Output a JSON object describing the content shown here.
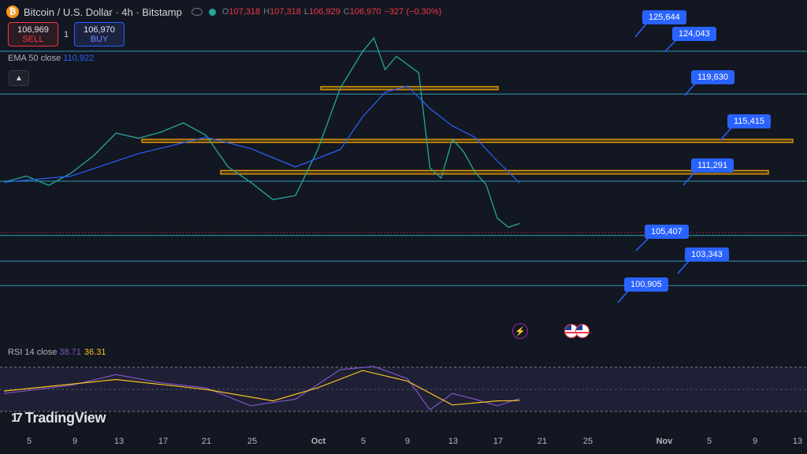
{
  "header": {
    "coin_glyph": "₿",
    "symbol": "Bitcoin / U.S. Dollar · 4h · Bitstamp",
    "o_label": "O",
    "o": "107,318",
    "h_label": "H",
    "h": "107,318",
    "l_label": "L",
    "l": "106,929",
    "c_label": "C",
    "c": "106,970",
    "change": "−327 (−0.30%)"
  },
  "trade": {
    "sell_price": "106,969",
    "sell_label": "SELL",
    "qty": "1",
    "buy_price": "106,970",
    "buy_label": "BUY"
  },
  "ema": {
    "label": "EMA 50 close",
    "value": "110,922"
  },
  "rsi": {
    "label": "RSI 14 close",
    "value": "38.71",
    "ma_value": "36.31"
  },
  "brand": {
    "logo": "17",
    "name": "TradingView"
  },
  "icons": {
    "collapse": "chevron-up-icon",
    "event": "lightning-icon",
    "flags": "us-flag-icon"
  },
  "colors": {
    "up": "#26a69a",
    "down": "#f23645",
    "ema": "#2962ff",
    "rsi": "#7e57c2",
    "rsi_ma": "#f7c325",
    "zone": "#f7a600",
    "level": "#2f9ab5",
    "label": "#2962ff"
  },
  "price_labels": [
    "125,644",
    "124,043",
    "119,630",
    "115,415",
    "111,291",
    "105,407",
    "103,343",
    "100,905"
  ],
  "x_ticks": [
    "5",
    "9",
    "13",
    "17",
    "21",
    "25",
    "Oct",
    "5",
    "9",
    "13",
    "17",
    "21",
    "25",
    "Nov",
    "5",
    "9",
    "13"
  ],
  "chart_data": {
    "type": "line",
    "price_path": [
      [
        "Sep 3",
        111000
      ],
      [
        "Sep 5",
        111600
      ],
      [
        "Sep 7",
        110700
      ],
      [
        "Sep 9",
        111900
      ],
      [
        "Sep 11",
        113600
      ],
      [
        "Sep 13",
        115800
      ],
      [
        "Sep 15",
        115300
      ],
      [
        "Sep 17",
        115900
      ],
      [
        "Sep 19",
        116800
      ],
      [
        "Sep 21",
        115600
      ],
      [
        "Sep 23",
        112500
      ],
      [
        "Sep 25",
        111000
      ],
      [
        "Sep 27",
        109300
      ],
      [
        "Sep 29",
        109700
      ],
      [
        "Oct 1",
        114200
      ],
      [
        "Oct 3",
        120200
      ],
      [
        "Oct 5",
        123800
      ],
      [
        "Oct 6",
        125100
      ],
      [
        "Oct 7",
        122000
      ],
      [
        "Oct 8",
        123300
      ],
      [
        "Oct 10",
        121700
      ],
      [
        "Oct 11",
        112400
      ],
      [
        "Oct 12",
        111400
      ],
      [
        "Oct 13",
        115200
      ],
      [
        "Oct 14",
        114000
      ],
      [
        "Oct 15",
        112000
      ],
      [
        "Oct 16",
        110800
      ],
      [
        "Oct 17",
        107500
      ],
      [
        "Oct 18",
        106600
      ],
      [
        "Oct 19",
        106970
      ]
    ],
    "ema_50": [
      [
        "Sep 3",
        111000
      ],
      [
        "Sep 9",
        111600
      ],
      [
        "Sep 15",
        113800
      ],
      [
        "Sep 21",
        115400
      ],
      [
        "Sep 25",
        114300
      ],
      [
        "Sep 29",
        112500
      ],
      [
        "Oct 3",
        114200
      ],
      [
        "Oct 5",
        117400
      ],
      [
        "Oct 7",
        119800
      ],
      [
        "Oct 9",
        120400
      ],
      [
        "Oct 11",
        118200
      ],
      [
        "Oct 13",
        116500
      ],
      [
        "Oct 15",
        115400
      ],
      [
        "Oct 17",
        113100
      ],
      [
        "Oct 19",
        110922
      ]
    ],
    "rsi_14": [
      [
        "Sep 3",
        45
      ],
      [
        "Sep 9",
        55
      ],
      [
        "Sep 13",
        68
      ],
      [
        "Sep 17",
        58
      ],
      [
        "Sep 21",
        52
      ],
      [
        "Sep 25",
        30
      ],
      [
        "Sep 29",
        38
      ],
      [
        "Oct 3",
        74
      ],
      [
        "Oct 6",
        78
      ],
      [
        "Oct 9",
        63
      ],
      [
        "Oct 11",
        25
      ],
      [
        "Oct 13",
        45
      ],
      [
        "Oct 15",
        38
      ],
      [
        "Oct 17",
        30
      ],
      [
        "Oct 19",
        38.71
      ]
    ],
    "rsi_ma": [
      [
        "Sep 3",
        48
      ],
      [
        "Sep 13",
        62
      ],
      [
        "Sep 21",
        50
      ],
      [
        "Sep 27",
        36
      ],
      [
        "Oct 1",
        52
      ],
      [
        "Oct 5",
        73
      ],
      [
        "Oct 9",
        60
      ],
      [
        "Oct 13",
        31
      ],
      [
        "Oct 17",
        36
      ],
      [
        "Oct 19",
        36.31
      ]
    ],
    "horizontal_levels": [
      123800,
      119630,
      111100,
      105800,
      103300,
      100905
    ],
    "resistance_zones": [
      [
        120050,
        120350
      ],
      [
        114900,
        115200
      ],
      [
        111800,
        112150
      ]
    ],
    "y_range": [
      98000,
      126500
    ],
    "rsi_range": [
      0,
      100
    ],
    "rsi_bands": [
      70,
      30
    ],
    "grid": false
  }
}
